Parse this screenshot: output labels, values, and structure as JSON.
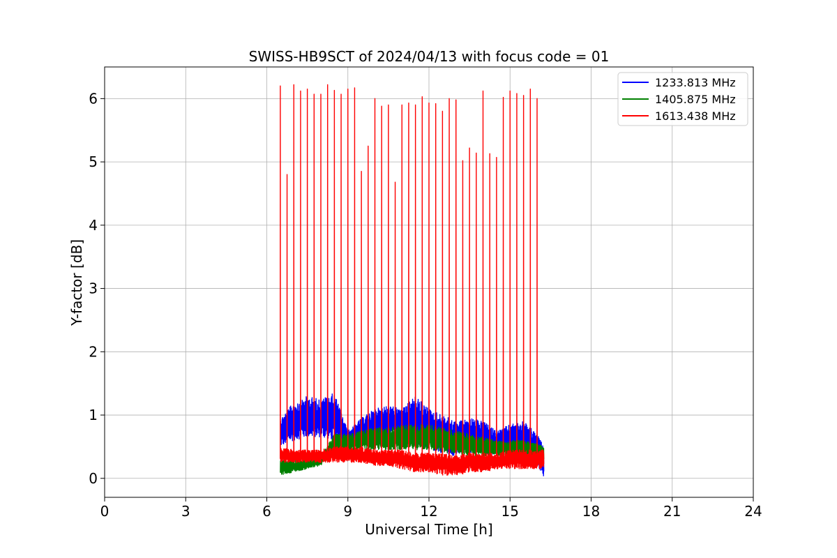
{
  "chart_data": {
    "type": "line",
    "title": "SWISS-HB9SCT of 2024/04/13 with focus code = 01",
    "xlabel": "Universal Time [h]",
    "ylabel": "Y-factor [dB]",
    "xlim": [
      0,
      24
    ],
    "ylim": [
      -0.3,
      6.5
    ],
    "xticks": [
      0,
      3,
      6,
      9,
      12,
      15,
      18,
      21,
      24
    ],
    "yticks": [
      0,
      1,
      2,
      3,
      4,
      5,
      6
    ],
    "grid": true,
    "legend_position": "top-right",
    "time_range": [
      6.5,
      16.25
    ],
    "series": [
      {
        "name": "1233.813 MHz",
        "color": "#0000ff",
        "envelope": [
          {
            "x": 6.5,
            "low": 0.5,
            "high": 0.95
          },
          {
            "x": 7.0,
            "low": 0.6,
            "high": 1.2
          },
          {
            "x": 7.5,
            "low": 0.65,
            "high": 1.3
          },
          {
            "x": 8.0,
            "low": 0.65,
            "high": 1.25
          },
          {
            "x": 8.5,
            "low": 0.6,
            "high": 1.35
          },
          {
            "x": 9.0,
            "low": 0.5,
            "high": 0.75
          },
          {
            "x": 9.5,
            "low": 0.55,
            "high": 0.95
          },
          {
            "x": 10.0,
            "low": 0.6,
            "high": 1.1
          },
          {
            "x": 10.5,
            "low": 0.65,
            "high": 1.15
          },
          {
            "x": 11.0,
            "low": 0.6,
            "high": 1.1
          },
          {
            "x": 11.5,
            "low": 0.5,
            "high": 1.3
          },
          {
            "x": 12.0,
            "low": 0.45,
            "high": 1.1
          },
          {
            "x": 12.5,
            "low": 0.4,
            "high": 1.0
          },
          {
            "x": 13.0,
            "low": 0.35,
            "high": 0.9
          },
          {
            "x": 13.5,
            "low": 0.4,
            "high": 0.95
          },
          {
            "x": 14.0,
            "low": 0.4,
            "high": 0.9
          },
          {
            "x": 14.5,
            "low": 0.35,
            "high": 0.75
          },
          {
            "x": 15.0,
            "low": 0.4,
            "high": 0.85
          },
          {
            "x": 15.5,
            "low": 0.4,
            "high": 0.9
          },
          {
            "x": 16.0,
            "low": 0.2,
            "high": 0.7
          },
          {
            "x": 16.25,
            "low": 0.0,
            "high": 0.5
          }
        ]
      },
      {
        "name": "1405.875 MHz",
        "color": "#008000",
        "envelope": [
          {
            "x": 6.5,
            "low": 0.05,
            "high": 0.3
          },
          {
            "x": 7.0,
            "low": 0.1,
            "high": 0.3
          },
          {
            "x": 7.5,
            "low": 0.15,
            "high": 0.3
          },
          {
            "x": 8.0,
            "low": 0.2,
            "high": 0.35
          },
          {
            "x": 8.5,
            "low": 0.4,
            "high": 0.7
          },
          {
            "x": 9.0,
            "low": 0.4,
            "high": 0.7
          },
          {
            "x": 9.5,
            "low": 0.45,
            "high": 0.75
          },
          {
            "x": 10.0,
            "low": 0.45,
            "high": 0.8
          },
          {
            "x": 10.5,
            "low": 0.45,
            "high": 0.8
          },
          {
            "x": 11.0,
            "low": 0.45,
            "high": 0.85
          },
          {
            "x": 11.5,
            "low": 0.45,
            "high": 0.85
          },
          {
            "x": 12.0,
            "low": 0.45,
            "high": 0.85
          },
          {
            "x": 12.5,
            "low": 0.4,
            "high": 0.8
          },
          {
            "x": 13.0,
            "low": 0.4,
            "high": 0.75
          },
          {
            "x": 13.5,
            "low": 0.35,
            "high": 0.7
          },
          {
            "x": 14.0,
            "low": 0.35,
            "high": 0.65
          },
          {
            "x": 14.5,
            "low": 0.35,
            "high": 0.6
          },
          {
            "x": 15.0,
            "low": 0.35,
            "high": 0.6
          },
          {
            "x": 15.5,
            "low": 0.35,
            "high": 0.6
          },
          {
            "x": 16.0,
            "low": 0.3,
            "high": 0.55
          },
          {
            "x": 16.25,
            "low": 0.3,
            "high": 0.5
          }
        ]
      },
      {
        "name": "1613.438 MHz",
        "color": "#ff0000",
        "envelope": [
          {
            "x": 6.5,
            "low": 0.25,
            "high": 0.5
          },
          {
            "x": 7.0,
            "low": 0.25,
            "high": 0.45
          },
          {
            "x": 7.5,
            "low": 0.25,
            "high": 0.45
          },
          {
            "x": 8.0,
            "low": 0.25,
            "high": 0.45
          },
          {
            "x": 8.5,
            "low": 0.25,
            "high": 0.5
          },
          {
            "x": 9.0,
            "low": 0.25,
            "high": 0.5
          },
          {
            "x": 9.5,
            "low": 0.25,
            "high": 0.5
          },
          {
            "x": 10.0,
            "low": 0.2,
            "high": 0.45
          },
          {
            "x": 10.5,
            "low": 0.2,
            "high": 0.45
          },
          {
            "x": 11.0,
            "low": 0.15,
            "high": 0.45
          },
          {
            "x": 11.5,
            "low": 0.1,
            "high": 0.4
          },
          {
            "x": 12.0,
            "low": 0.1,
            "high": 0.4
          },
          {
            "x": 12.5,
            "low": 0.05,
            "high": 0.4
          },
          {
            "x": 13.0,
            "low": 0.05,
            "high": 0.35
          },
          {
            "x": 13.5,
            "low": 0.1,
            "high": 0.4
          },
          {
            "x": 14.0,
            "low": 0.1,
            "high": 0.4
          },
          {
            "x": 14.5,
            "low": 0.15,
            "high": 0.4
          },
          {
            "x": 15.0,
            "low": 0.15,
            "high": 0.45
          },
          {
            "x": 15.5,
            "low": 0.15,
            "high": 0.45
          },
          {
            "x": 16.0,
            "low": 0.15,
            "high": 0.45
          },
          {
            "x": 16.25,
            "low": 0.15,
            "high": 0.45
          }
        ],
        "spikes": [
          {
            "x": 6.5,
            "y": 6.2
          },
          {
            "x": 6.75,
            "y": 4.8
          },
          {
            "x": 7.0,
            "y": 6.22
          },
          {
            "x": 7.25,
            "y": 6.12
          },
          {
            "x": 7.5,
            "y": 6.15
          },
          {
            "x": 7.75,
            "y": 6.07
          },
          {
            "x": 8.0,
            "y": 6.07
          },
          {
            "x": 8.25,
            "y": 6.22
          },
          {
            "x": 8.5,
            "y": 6.13
          },
          {
            "x": 8.75,
            "y": 6.07
          },
          {
            "x": 9.0,
            "y": 6.15
          },
          {
            "x": 9.25,
            "y": 6.17
          },
          {
            "x": 9.5,
            "y": 4.85
          },
          {
            "x": 9.75,
            "y": 5.25
          },
          {
            "x": 10.0,
            "y": 6.0
          },
          {
            "x": 10.25,
            "y": 5.88
          },
          {
            "x": 10.5,
            "y": 5.9
          },
          {
            "x": 10.75,
            "y": 4.68
          },
          {
            "x": 11.0,
            "y": 5.9
          },
          {
            "x": 11.25,
            "y": 5.93
          },
          {
            "x": 11.5,
            "y": 5.9
          },
          {
            "x": 11.75,
            "y": 6.03
          },
          {
            "x": 12.0,
            "y": 5.93
          },
          {
            "x": 12.25,
            "y": 5.92
          },
          {
            "x": 12.5,
            "y": 5.8
          },
          {
            "x": 12.75,
            "y": 6.0
          },
          {
            "x": 13.0,
            "y": 5.98
          },
          {
            "x": 13.25,
            "y": 5.02
          },
          {
            "x": 13.5,
            "y": 5.22
          },
          {
            "x": 13.75,
            "y": 5.14
          },
          {
            "x": 14.0,
            "y": 6.12
          },
          {
            "x": 14.25,
            "y": 5.13
          },
          {
            "x": 14.5,
            "y": 5.07
          },
          {
            "x": 14.75,
            "y": 6.02
          },
          {
            "x": 15.0,
            "y": 6.12
          },
          {
            "x": 15.25,
            "y": 6.08
          },
          {
            "x": 15.5,
            "y": 6.05
          },
          {
            "x": 15.75,
            "y": 6.15
          },
          {
            "x": 16.0,
            "y": 6.0
          }
        ]
      }
    ]
  }
}
